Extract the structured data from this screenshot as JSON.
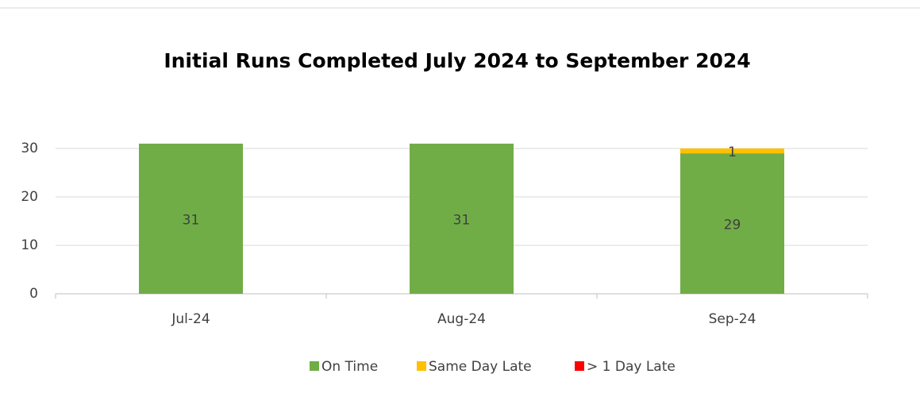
{
  "chart_data": {
    "type": "stacked_bar",
    "title": "Initial Runs Completed July 2024 to September 2024",
    "categories": [
      "Jul-24",
      "Aug-24",
      "Sep-24"
    ],
    "series": [
      {
        "name": "On Time",
        "color": "#70ad47",
        "values": [
          31,
          31,
          29
        ]
      },
      {
        "name": "Same Day Late",
        "color": "#ffc000",
        "values": [
          null,
          null,
          1
        ]
      },
      {
        "name": "> 1 Day Late",
        "color": "#ff0000",
        "values": [
          null,
          null,
          null
        ]
      }
    ],
    "ylim": [
      0,
      30
    ],
    "yticks": [
      0,
      10,
      20,
      30
    ],
    "grid": true,
    "legend": "bottom"
  }
}
